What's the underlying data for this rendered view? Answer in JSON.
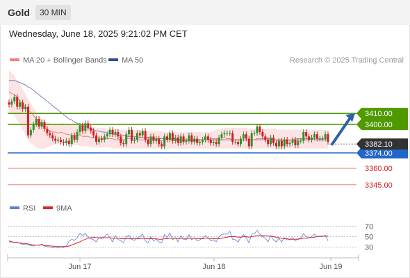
{
  "header": {
    "title": "Gold",
    "timeframe": "30 MIN"
  },
  "datetime": "Wednesday, June 18, 2025 9:21:02 PM CET",
  "legend": {
    "ma20_label": "MA 20 + Bollinger Bands",
    "ma50_label": "MA 50",
    "copyright": "Research © 2025 Trading Central",
    "rsi_label": "RSI",
    "rsi_ma_label": "9MA"
  },
  "colors": {
    "resistance": "#4f9a00",
    "support": "#2166c9",
    "target": "#e07070",
    "bollinger_fill": "#fde3e3",
    "ma20": "#f08080",
    "ma50": "#7b83b8",
    "candle_up": "#2f8f2f",
    "candle_down": "#d02020",
    "arrow": "#2a62ad",
    "rsi": "#5c7fd6",
    "rsi_ma": "#d9262f",
    "price_tag": "#333333"
  },
  "chart_data": {
    "type": "candlestick",
    "symbol": "Gold",
    "interval": "30 MIN",
    "x_ticks": [
      "Jun 17",
      "Jun 18",
      "Jun 19"
    ],
    "price_ylim": [
      3336,
      3450
    ],
    "current_price": "3382.10",
    "levels": [
      {
        "label": "3410.00",
        "value": 3410,
        "kind": "resistance"
      },
      {
        "label": "3400.00",
        "value": 3400,
        "kind": "resistance"
      },
      {
        "label": "3374.00",
        "value": 3374,
        "kind": "support"
      },
      {
        "label": "3360.00",
        "value": 3360,
        "kind": "target"
      },
      {
        "label": "3345.00",
        "value": 3345,
        "kind": "target"
      }
    ],
    "candle_closes": [
      3418,
      3421,
      3425,
      3416,
      3420,
      3414,
      3416,
      3390,
      3395,
      3400,
      3405,
      3398,
      3402,
      3396,
      3392,
      3390,
      3387,
      3385,
      3386,
      3384,
      3383,
      3385,
      3382,
      3390,
      3386,
      3393,
      3399,
      3394,
      3401,
      3397,
      3394,
      3390,
      3384,
      3387,
      3386,
      3389,
      3391,
      3395,
      3391,
      3393,
      3389,
      3383,
      3382,
      3391,
      3395,
      3385,
      3386,
      3392,
      3390,
      3394,
      3386,
      3382,
      3389,
      3385,
      3387,
      3382,
      3380,
      3389,
      3386,
      3392,
      3385,
      3388,
      3383,
      3389,
      3384,
      3385,
      3390,
      3384,
      3387,
      3383,
      3384,
      3386,
      3389,
      3386,
      3383,
      3384,
      3382,
      3388,
      3391,
      3392,
      3392,
      3392,
      3384,
      3384,
      3382,
      3387,
      3391,
      3387,
      3380,
      3392,
      3392,
      3398,
      3393,
      3389,
      3386,
      3382,
      3388,
      3383,
      3380,
      3385,
      3380,
      3386,
      3382,
      3383,
      3386,
      3381,
      3385,
      3385,
      3393,
      3389,
      3386,
      3388,
      3391,
      3387,
      3387,
      3387,
      3391,
      3384
    ],
    "ma20": [
      3430,
      3428,
      3427,
      3425,
      3421,
      3419,
      3416,
      3413,
      3411,
      3408,
      3405,
      3403,
      3400,
      3397,
      3395,
      3394,
      3393,
      3393,
      3392,
      3393,
      3392,
      3391,
      3391,
      3390,
      3390,
      3390,
      3390,
      3389,
      3389,
      3389,
      3388,
      3388,
      3388,
      3388,
      3387,
      3387,
      3387,
      3387,
      3387,
      3386,
      3386,
      3386,
      3386,
      3387,
      3387,
      3387,
      3387,
      3386,
      3386,
      3386,
      3386,
      3386,
      3386,
      3386,
      3385,
      3385,
      3385,
      3386,
      3386,
      3386,
      3386,
      3385,
      3385,
      3385,
      3385,
      3385,
      3385,
      3385,
      3385,
      3385,
      3386,
      3386,
      3386,
      3386,
      3387,
      3387,
      3387,
      3387,
      3388,
      3388,
      3387,
      3387,
      3386,
      3386,
      3386,
      3386,
      3386,
      3386,
      3386,
      3386,
      3386,
      3387,
      3387,
      3387,
      3387,
      3387,
      3387,
      3386,
      3386,
      3385,
      3385,
      3385,
      3386,
      3386,
      3386,
      3387,
      3387,
      3387,
      3387,
      3387,
      3387,
      3387,
      3387,
      3387,
      3387,
      3387,
      3387,
      3387
    ],
    "bollinger_upper": [
      3450,
      3447,
      3444,
      3440,
      3436,
      3432,
      3428,
      3423,
      3419,
      3415,
      3411,
      3407,
      3405,
      3403,
      3402,
      3401,
      3400,
      3400,
      3400,
      3401,
      3401,
      3400,
      3400,
      3400,
      3400,
      3400,
      3400,
      3399,
      3399,
      3398,
      3398,
      3398,
      3397,
      3397,
      3397,
      3397,
      3396,
      3396,
      3396,
      3396,
      3396,
      3395,
      3395,
      3395,
      3395,
      3395,
      3395,
      3395,
      3395,
      3394,
      3394,
      3394,
      3394,
      3394,
      3394,
      3394,
      3394,
      3393,
      3393,
      3393,
      3393,
      3393,
      3393,
      3393,
      3393,
      3393,
      3393,
      3393,
      3393,
      3393,
      3393,
      3393,
      3393,
      3393,
      3393,
      3394,
      3395,
      3396,
      3396,
      3397,
      3397,
      3397,
      3397,
      3397,
      3397,
      3397,
      3397,
      3397,
      3396,
      3396,
      3396,
      3396,
      3396,
      3396,
      3396,
      3396,
      3396,
      3396,
      3396,
      3395,
      3395,
      3395,
      3395,
      3395,
      3395,
      3395,
      3395,
      3395,
      3395,
      3395,
      3395,
      3395,
      3395,
      3395,
      3395,
      3395,
      3395,
      3395
    ],
    "bollinger_lower": [
      3411,
      3409,
      3408,
      3404,
      3400,
      3395,
      3390,
      3386,
      3383,
      3381,
      3379,
      3378,
      3378,
      3378,
      3379,
      3380,
      3381,
      3382,
      3383,
      3384,
      3384,
      3383,
      3383,
      3382,
      3381,
      3381,
      3380,
      3380,
      3380,
      3380,
      3379,
      3379,
      3379,
      3379,
      3379,
      3379,
      3379,
      3379,
      3378,
      3378,
      3378,
      3378,
      3378,
      3378,
      3378,
      3378,
      3378,
      3378,
      3378,
      3378,
      3378,
      3378,
      3378,
      3378,
      3378,
      3378,
      3378,
      3378,
      3378,
      3378,
      3378,
      3378,
      3378,
      3378,
      3378,
      3378,
      3378,
      3378,
      3378,
      3378,
      3378,
      3378,
      3378,
      3378,
      3378,
      3378,
      3378,
      3378,
      3378,
      3378,
      3378,
      3378,
      3378,
      3378,
      3378,
      3378,
      3378,
      3378,
      3378,
      3378,
      3378,
      3378,
      3378,
      3378,
      3378,
      3378,
      3378,
      3378,
      3378,
      3378,
      3378,
      3378,
      3378,
      3378,
      3378,
      3378,
      3378,
      3378,
      3378,
      3378,
      3378,
      3378,
      3378,
      3378,
      3378,
      3378,
      3378,
      3378
    ],
    "ma50": [
      3440,
      3440,
      3440,
      3439,
      3438,
      3437,
      3436,
      3434,
      3433,
      3431,
      3429,
      3427,
      3425,
      3423,
      3421,
      3419,
      3417,
      3415,
      3413,
      3411,
      3409,
      3407,
      3405,
      3404,
      3402,
      3401,
      3400,
      3399,
      3398,
      3397,
      3396,
      3395,
      3394,
      3394,
      3393,
      3393,
      3392,
      3392,
      3391,
      3391,
      3390,
      3390,
      3390,
      3389,
      3389,
      3389,
      3389,
      3388,
      3388,
      3388,
      3388,
      3388,
      3387,
      3387,
      3387,
      3387,
      3387,
      3387,
      3387,
      3387,
      3387,
      3387,
      3386,
      3386,
      3386,
      3386,
      3386,
      3386,
      3386,
      3386,
      3386,
      3386,
      3386,
      3386,
      3386,
      3386,
      3386,
      3386,
      3386,
      3386,
      3386,
      3386,
      3386,
      3386,
      3386,
      3386,
      3386,
      3386,
      3386,
      3386,
      3386,
      3386,
      3386,
      3386,
      3386,
      3386,
      3386,
      3386,
      3386,
      3386,
      3386,
      3386,
      3386,
      3386,
      3386,
      3386,
      3386,
      3386,
      3386,
      3386,
      3386,
      3386,
      3386,
      3386,
      3386,
      3386,
      3386,
      3386
    ],
    "forecast_arrow": {
      "from": 3382,
      "to": 3410
    },
    "rsi_ticks": [
      70,
      50,
      30
    ],
    "rsi_ylim": [
      20,
      80
    ],
    "rsi": [
      42,
      41,
      38,
      40,
      37,
      35,
      36,
      34,
      33,
      32,
      34,
      33,
      36,
      32,
      31,
      30,
      29,
      30,
      28,
      30,
      29,
      32,
      41,
      45,
      43,
      48,
      56,
      52,
      56,
      49,
      46,
      44,
      40,
      48,
      46,
      50,
      55,
      48,
      40,
      52,
      45,
      42,
      39,
      50,
      53,
      45,
      43,
      47,
      50,
      55,
      42,
      38,
      50,
      42,
      45,
      40,
      38,
      54,
      48,
      57,
      44,
      48,
      40,
      52,
      45,
      44,
      54,
      44,
      48,
      42,
      44,
      47,
      52,
      48,
      42,
      44,
      40,
      50,
      54,
      55,
      55,
      60,
      45,
      44,
      40,
      48,
      54,
      48,
      38,
      55,
      56,
      62,
      55,
      50,
      47,
      40,
      52,
      44,
      40,
      47,
      40,
      48,
      44,
      44,
      48,
      42,
      46,
      47,
      56,
      50,
      48,
      50,
      55,
      50,
      50,
      50,
      53,
      42
    ],
    "rsi_ma": [
      40,
      40,
      39,
      39,
      38,
      37,
      37,
      36,
      35,
      34,
      34,
      34,
      34,
      33,
      33,
      32,
      32,
      31,
      31,
      31,
      31,
      31,
      32,
      34,
      36,
      38,
      40,
      43,
      45,
      47,
      48,
      49,
      48,
      48,
      48,
      48,
      48,
      48,
      47,
      47,
      47,
      46,
      46,
      46,
      46,
      46,
      46,
      46,
      46,
      47,
      46,
      46,
      46,
      46,
      46,
      45,
      45,
      46,
      46,
      47,
      47,
      47,
      46,
      47,
      47,
      46,
      47,
      47,
      47,
      46,
      46,
      46,
      47,
      47,
      46,
      46,
      46,
      46,
      47,
      48,
      49,
      50,
      50,
      50,
      49,
      49,
      50,
      50,
      49,
      50,
      51,
      52,
      52,
      52,
      52,
      51,
      51,
      50,
      49,
      48,
      47,
      46,
      46,
      45,
      45,
      45,
      45,
      46,
      47,
      47,
      48,
      48,
      49,
      50,
      51,
      51,
      51,
      51
    ]
  }
}
